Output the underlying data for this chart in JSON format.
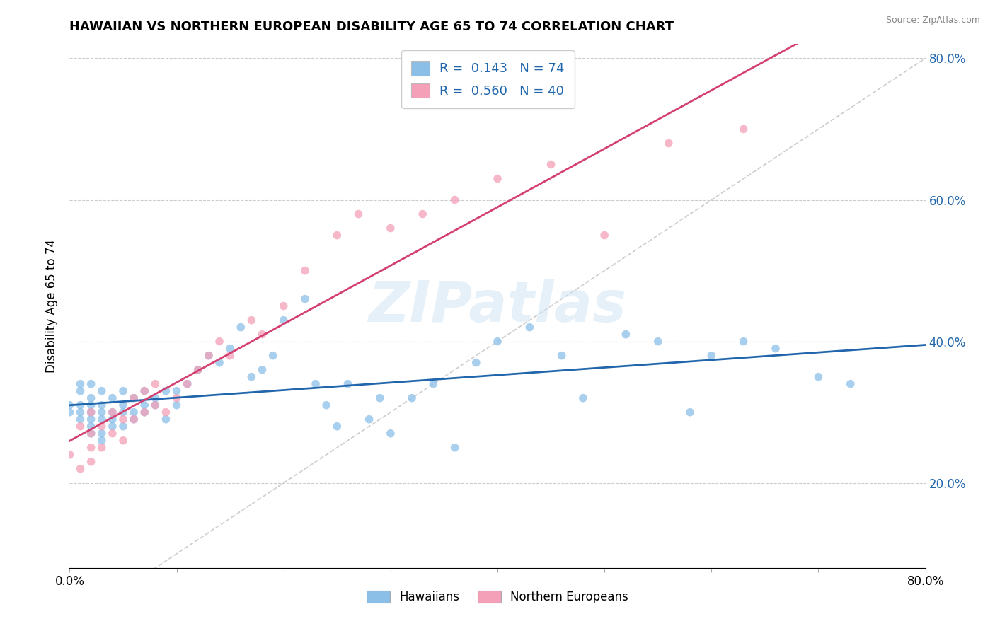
{
  "title": "HAWAIIAN VS NORTHERN EUROPEAN DISABILITY AGE 65 TO 74 CORRELATION CHART",
  "source": "Source: ZipAtlas.com",
  "ylabel": "Disability Age 65 to 74",
  "xlim": [
    0.0,
    0.8
  ],
  "ylim": [
    0.08,
    0.82
  ],
  "hawaiian_color": "#8bbfe8",
  "northern_european_color": "#f4a0b8",
  "hawaiian_line_color": "#2166ac",
  "northern_european_line_color": "#d44070",
  "R_hawaiian": 0.143,
  "N_hawaiian": 74,
  "R_northern_european": 0.56,
  "N_northern_european": 40,
  "legend_label_hawaiian": "Hawaiians",
  "legend_label_northern_european": "Northern Europeans",
  "ytick_positions": [
    0.2,
    0.4,
    0.6,
    0.8
  ],
  "ytick_labels": [
    "20.0%",
    "40.0%",
    "60.0%",
    "80.0%"
  ],
  "hawaiian_x": [
    0.0,
    0.0,
    0.01,
    0.01,
    0.01,
    0.01,
    0.01,
    0.02,
    0.02,
    0.02,
    0.02,
    0.02,
    0.02,
    0.02,
    0.03,
    0.03,
    0.03,
    0.03,
    0.03,
    0.03,
    0.04,
    0.04,
    0.04,
    0.04,
    0.05,
    0.05,
    0.05,
    0.05,
    0.06,
    0.06,
    0.06,
    0.07,
    0.07,
    0.07,
    0.08,
    0.08,
    0.09,
    0.09,
    0.1,
    0.1,
    0.11,
    0.12,
    0.13,
    0.14,
    0.15,
    0.16,
    0.17,
    0.18,
    0.19,
    0.2,
    0.22,
    0.23,
    0.24,
    0.25,
    0.26,
    0.28,
    0.29,
    0.3,
    0.32,
    0.34,
    0.36,
    0.38,
    0.4,
    0.43,
    0.46,
    0.48,
    0.52,
    0.55,
    0.58,
    0.6,
    0.63,
    0.66,
    0.7,
    0.73
  ],
  "hawaiian_y": [
    0.3,
    0.31,
    0.29,
    0.3,
    0.31,
    0.33,
    0.34,
    0.27,
    0.28,
    0.29,
    0.3,
    0.31,
    0.32,
    0.34,
    0.26,
    0.27,
    0.29,
    0.3,
    0.31,
    0.33,
    0.28,
    0.29,
    0.3,
    0.32,
    0.28,
    0.3,
    0.31,
    0.33,
    0.29,
    0.3,
    0.32,
    0.3,
    0.31,
    0.33,
    0.31,
    0.32,
    0.29,
    0.33,
    0.31,
    0.33,
    0.34,
    0.36,
    0.38,
    0.37,
    0.39,
    0.42,
    0.35,
    0.36,
    0.38,
    0.43,
    0.46,
    0.34,
    0.31,
    0.28,
    0.34,
    0.29,
    0.32,
    0.27,
    0.32,
    0.34,
    0.25,
    0.37,
    0.4,
    0.42,
    0.38,
    0.32,
    0.41,
    0.4,
    0.3,
    0.38,
    0.4,
    0.39,
    0.35,
    0.34
  ],
  "northern_european_x": [
    0.0,
    0.01,
    0.01,
    0.02,
    0.02,
    0.02,
    0.02,
    0.03,
    0.03,
    0.04,
    0.04,
    0.05,
    0.05,
    0.06,
    0.06,
    0.07,
    0.07,
    0.08,
    0.08,
    0.09,
    0.1,
    0.11,
    0.12,
    0.13,
    0.14,
    0.15,
    0.17,
    0.18,
    0.2,
    0.22,
    0.25,
    0.27,
    0.3,
    0.33,
    0.36,
    0.4,
    0.45,
    0.5,
    0.56,
    0.63
  ],
  "northern_european_y": [
    0.24,
    0.22,
    0.28,
    0.23,
    0.25,
    0.27,
    0.3,
    0.25,
    0.28,
    0.27,
    0.3,
    0.26,
    0.29,
    0.29,
    0.32,
    0.3,
    0.33,
    0.31,
    0.34,
    0.3,
    0.32,
    0.34,
    0.36,
    0.38,
    0.4,
    0.38,
    0.43,
    0.41,
    0.45,
    0.5,
    0.55,
    0.58,
    0.56,
    0.58,
    0.6,
    0.63,
    0.65,
    0.55,
    0.68,
    0.7
  ]
}
